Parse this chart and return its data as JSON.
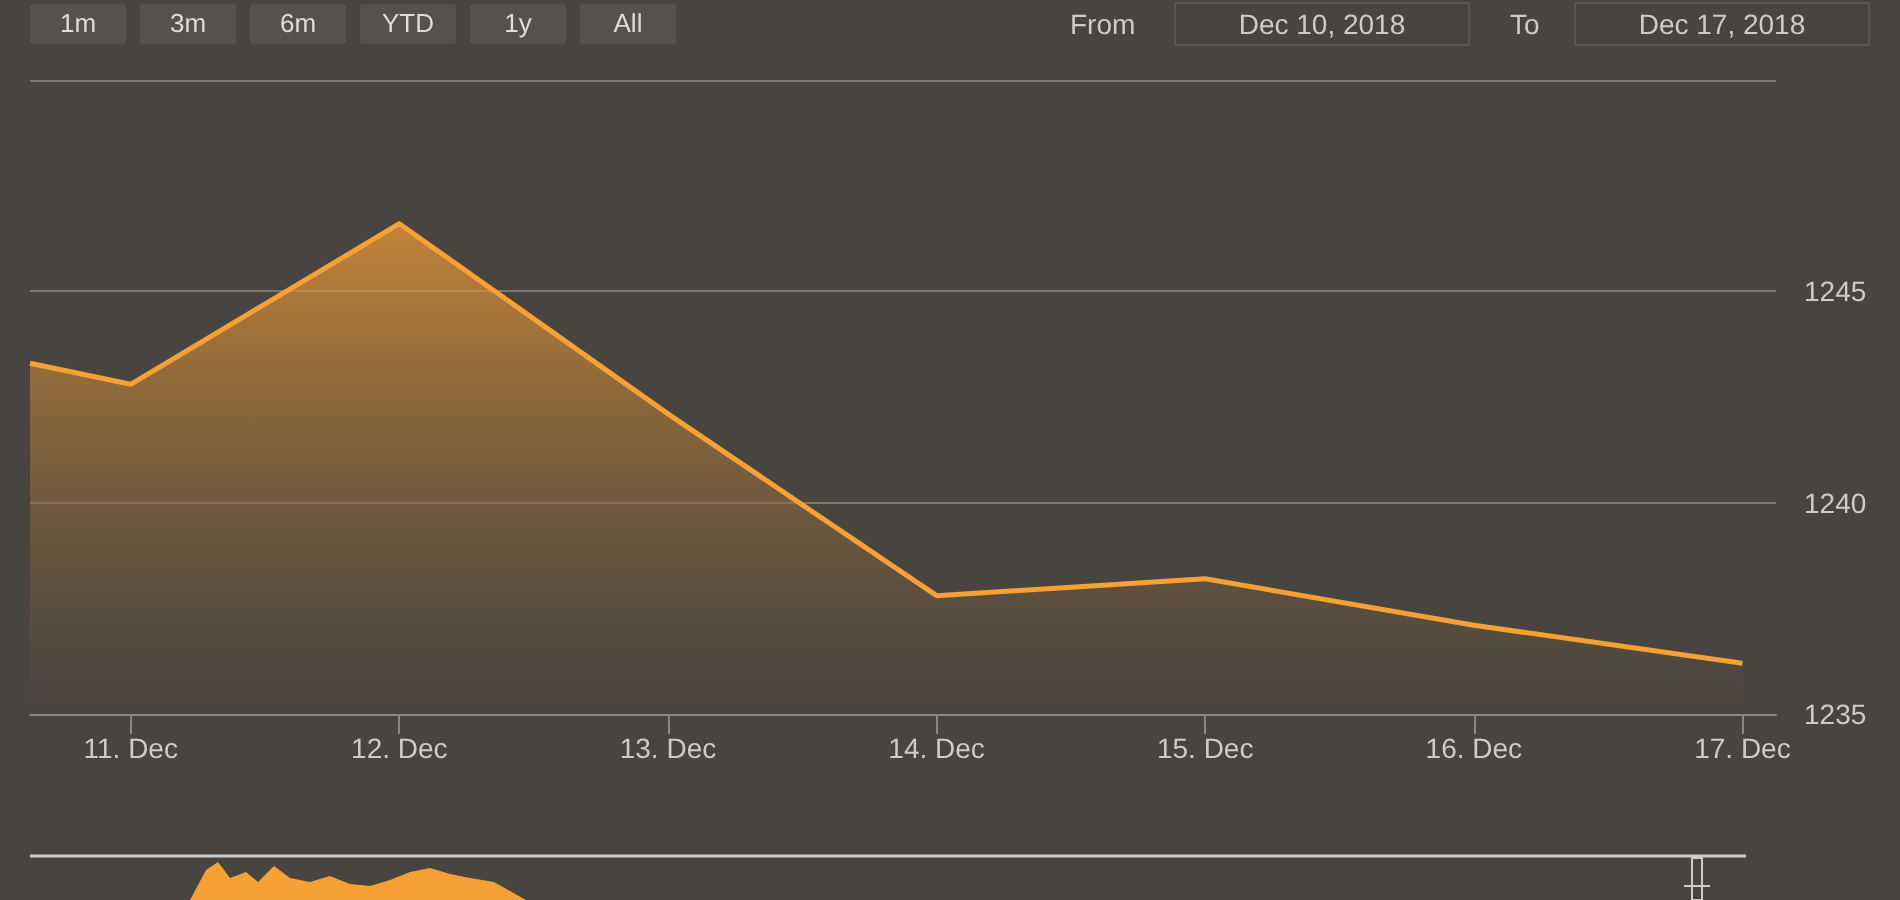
{
  "chart_data": {
    "type": "area",
    "x": [
      "2018-12-10T15:00",
      "2018-12-11",
      "2018-12-12",
      "2018-12-13",
      "2018-12-14",
      "2018-12-15",
      "2018-12-16",
      "2018-12-17"
    ],
    "series": [
      {
        "color": "#f7a035",
        "values": [
          1243.3,
          1242.8,
          1246.6,
          1242.1,
          1237.8,
          1238.2,
          1237.1,
          1236.2
        ]
      }
    ],
    "xlim": [
      "2018-12-10T15:00",
      "2018-12-17T03:00"
    ],
    "xticks": [
      {
        "value": "2018-12-11",
        "label": "11. Dec"
      },
      {
        "value": "2018-12-12",
        "label": "12. Dec"
      },
      {
        "value": "2018-12-13",
        "label": "13. Dec"
      },
      {
        "value": "2018-12-14",
        "label": "14. Dec"
      },
      {
        "value": "2018-12-15",
        "label": "15. Dec"
      },
      {
        "value": "2018-12-16",
        "label": "16. Dec"
      },
      {
        "value": "2018-12-17",
        "label": "17. Dec"
      }
    ],
    "ylim": [
      1235,
      1250
    ],
    "yticks": [
      1235,
      1240,
      1245,
      {
        "value": 1250,
        "label": null
      }
    ],
    "grid": "y",
    "marker": "none",
    "line_style": "solid",
    "annotations": [
      "1m",
      "3m",
      "6m",
      "YTD",
      "1y",
      "All",
      "From",
      "Dec 10, 2018",
      "To",
      "Dec 17, 2018"
    ]
  }
}
